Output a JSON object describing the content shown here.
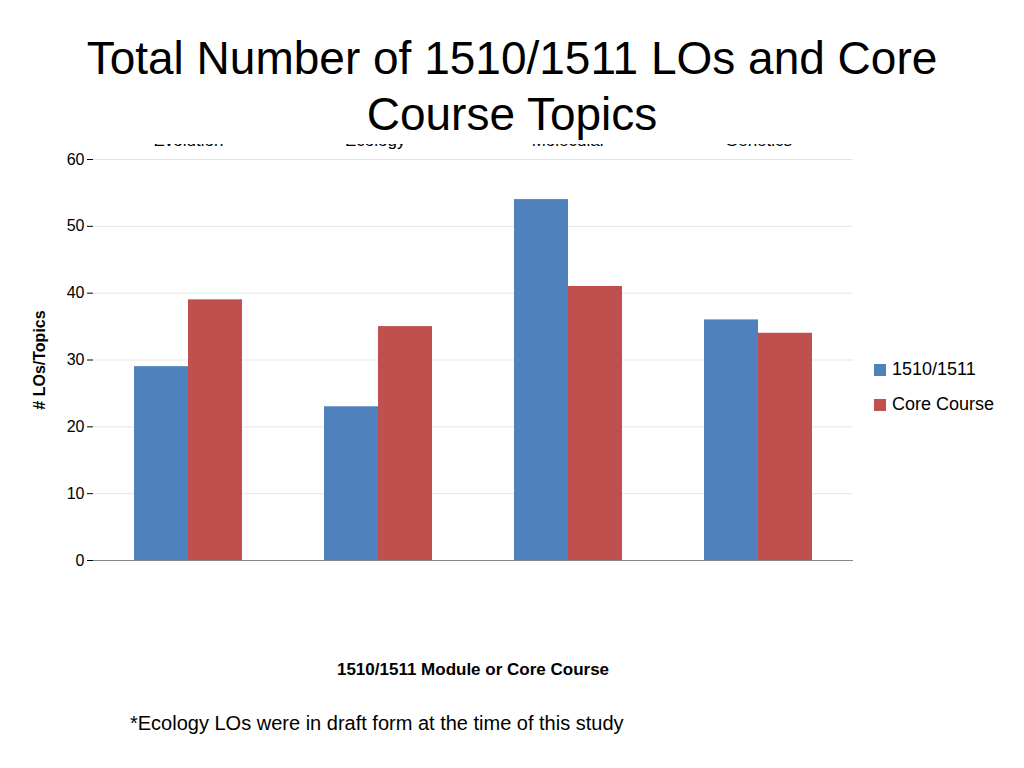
{
  "chart_data": {
    "type": "bar",
    "title": "Total Number of 1510/1511 LOs and Core Course Topics",
    "x_label": "1510/1511 Module or Core Course",
    "y_label": "# LOs/Topics",
    "annotations": [
      "*Ecology LOs were in draft form at the time of this study"
    ],
    "categories": [
      "Evolution",
      "Ecology*",
      "Biomolecules/Cell & Molecular",
      "Genetics"
    ],
    "series": [
      {
        "name": "1510/1511",
        "color": "#4f81bd",
        "values": [
          29,
          23,
          54,
          36
        ]
      },
      {
        "name": "Core Course",
        "color": "#c0504d",
        "values": [
          39,
          35,
          41,
          34
        ]
      }
    ],
    "ylim": [
      0,
      60
    ],
    "yticks": [
      0,
      10,
      20,
      30,
      40,
      50,
      60
    ],
    "grid": true,
    "legend": "right"
  }
}
